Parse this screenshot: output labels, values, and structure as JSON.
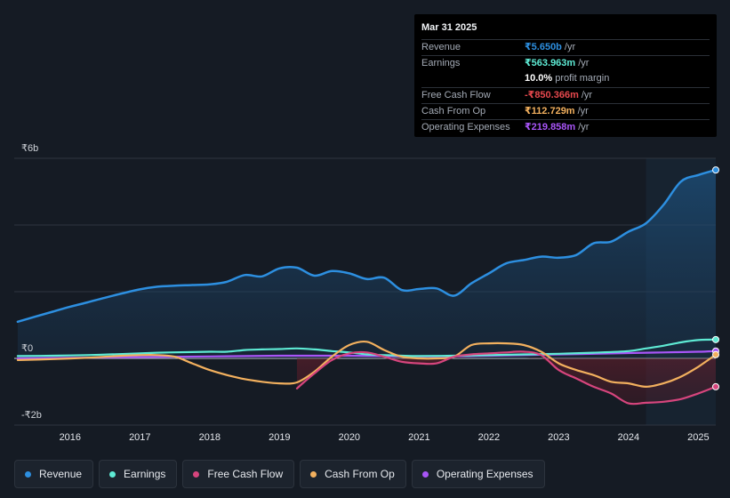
{
  "tooltip": {
    "date": "Mar 31 2025",
    "rows": [
      {
        "label": "Revenue",
        "value": "₹5.650b",
        "unit": "/yr",
        "color": "#2d8fe0"
      },
      {
        "label": "Earnings",
        "value": "₹563.963m",
        "unit": "/yr",
        "color": "#5eead4"
      },
      {
        "label": "",
        "value": "10.0%",
        "unit": "profit margin",
        "color": "#ffffff"
      },
      {
        "label": "Free Cash Flow",
        "value": "-₹850.366m",
        "unit": "/yr",
        "color": "#e5484d"
      },
      {
        "label": "Cash From Op",
        "value": "₹112.729m",
        "unit": "/yr",
        "color": "#f2b05e"
      },
      {
        "label": "Operating Expenses",
        "value": "₹219.858m",
        "unit": "/yr",
        "color": "#a855f7"
      }
    ]
  },
  "legend": [
    {
      "label": "Revenue",
      "color": "#2d8fe0"
    },
    {
      "label": "Earnings",
      "color": "#5eead4"
    },
    {
      "label": "Free Cash Flow",
      "color": "#d6457d"
    },
    {
      "label": "Cash From Op",
      "color": "#f2b05e"
    },
    {
      "label": "Operating Expenses",
      "color": "#a855f7"
    }
  ],
  "chart_data": {
    "type": "line",
    "title": "",
    "y_tick_labels": [
      "₹6b",
      "₹0",
      "-₹2b"
    ],
    "x_tick_labels": [
      "2016",
      "2017",
      "2018",
      "2019",
      "2020",
      "2021",
      "2022",
      "2023",
      "2024",
      "2025"
    ],
    "xlim": [
      2015.2,
      2025.25
    ],
    "ylim": [
      -2.0,
      6.0
    ],
    "forecast_start": 2024.25,
    "series": [
      {
        "name": "Revenue",
        "color": "#2d8fe0",
        "x": [
          2015.25,
          2015.5,
          2015.75,
          2016.0,
          2016.25,
          2016.5,
          2016.75,
          2017.0,
          2017.25,
          2017.5,
          2017.75,
          2018.0,
          2018.25,
          2018.5,
          2018.75,
          2019.0,
          2019.25,
          2019.5,
          2019.75,
          2020.0,
          2020.25,
          2020.5,
          2020.75,
          2021.0,
          2021.25,
          2021.5,
          2021.75,
          2022.0,
          2022.25,
          2022.5,
          2022.75,
          2023.0,
          2023.25,
          2023.5,
          2023.75,
          2024.0,
          2024.25,
          2024.5,
          2024.75,
          2025.0,
          2025.25
        ],
        "values": [
          1.1,
          1.25,
          1.4,
          1.55,
          1.68,
          1.82,
          1.95,
          2.07,
          2.15,
          2.18,
          2.2,
          2.22,
          2.3,
          2.5,
          2.46,
          2.7,
          2.72,
          2.48,
          2.62,
          2.55,
          2.38,
          2.42,
          2.05,
          2.08,
          2.1,
          1.88,
          2.25,
          2.55,
          2.85,
          2.95,
          3.05,
          3.02,
          3.1,
          3.45,
          3.5,
          3.8,
          4.05,
          4.6,
          5.3,
          5.5,
          5.65
        ]
      },
      {
        "name": "Earnings",
        "color": "#5eead4",
        "x": [
          2015.25,
          2015.75,
          2016.25,
          2016.75,
          2017.25,
          2017.75,
          2018.0,
          2018.25,
          2018.5,
          2018.75,
          2019.0,
          2019.25,
          2019.5,
          2019.75,
          2020.0,
          2020.25,
          2020.5,
          2020.75,
          2021.0,
          2021.5,
          2022.0,
          2022.5,
          2023.0,
          2023.5,
          2024.0,
          2024.25,
          2024.5,
          2024.75,
          2025.0,
          2025.25
        ],
        "values": [
          0.07,
          0.08,
          0.1,
          0.13,
          0.17,
          0.19,
          0.2,
          0.2,
          0.25,
          0.27,
          0.28,
          0.3,
          0.27,
          0.22,
          0.18,
          0.12,
          0.1,
          0.08,
          0.07,
          0.08,
          0.1,
          0.12,
          0.14,
          0.17,
          0.22,
          0.3,
          0.38,
          0.48,
          0.55,
          0.564
        ]
      },
      {
        "name": "Free Cash Flow",
        "color": "#d6457d",
        "x": [
          2019.25,
          2019.5,
          2019.75,
          2020.0,
          2020.25,
          2020.5,
          2020.75,
          2021.0,
          2021.25,
          2021.5,
          2021.75,
          2022.0,
          2022.25,
          2022.5,
          2022.75,
          2023.0,
          2023.25,
          2023.5,
          2023.75,
          2024.0,
          2024.25,
          2024.5,
          2024.75,
          2025.0,
          2025.25
        ],
        "values": [
          -0.9,
          -0.45,
          -0.05,
          0.15,
          0.18,
          0.05,
          -0.1,
          -0.15,
          -0.15,
          0.05,
          0.12,
          0.15,
          0.18,
          0.2,
          0.1,
          -0.35,
          -0.6,
          -0.85,
          -1.05,
          -1.35,
          -1.33,
          -1.3,
          -1.22,
          -1.05,
          -0.85
        ]
      },
      {
        "name": "Cash From Op",
        "color": "#f2b05e",
        "x": [
          2015.25,
          2015.75,
          2016.25,
          2016.75,
          2017.0,
          2017.25,
          2017.5,
          2017.75,
          2018.0,
          2018.25,
          2018.5,
          2018.75,
          2019.0,
          2019.25,
          2019.5,
          2019.75,
          2020.0,
          2020.25,
          2020.5,
          2020.75,
          2021.0,
          2021.25,
          2021.5,
          2021.75,
          2022.0,
          2022.25,
          2022.5,
          2022.75,
          2023.0,
          2023.25,
          2023.5,
          2023.75,
          2024.0,
          2024.25,
          2024.5,
          2024.75,
          2025.0,
          2025.25
        ],
        "values": [
          -0.05,
          -0.02,
          0.02,
          0.08,
          0.1,
          0.1,
          0.05,
          -0.15,
          -0.35,
          -0.5,
          -0.62,
          -0.7,
          -0.75,
          -0.72,
          -0.4,
          0.05,
          0.4,
          0.5,
          0.25,
          0.05,
          0.0,
          0.0,
          0.05,
          0.4,
          0.45,
          0.45,
          0.4,
          0.2,
          -0.15,
          -0.35,
          -0.5,
          -0.7,
          -0.75,
          -0.85,
          -0.75,
          -0.55,
          -0.25,
          0.113
        ]
      },
      {
        "name": "Operating Expenses",
        "color": "#a855f7",
        "x": [
          2015.25,
          2016.0,
          2017.0,
          2018.0,
          2019.0,
          2020.0,
          2021.0,
          2022.0,
          2023.0,
          2024.0,
          2024.5,
          2025.0,
          2025.25
        ],
        "values": [
          0.0,
          0.02,
          0.04,
          0.06,
          0.08,
          0.08,
          0.06,
          0.08,
          0.12,
          0.16,
          0.18,
          0.2,
          0.22
        ]
      }
    ]
  }
}
